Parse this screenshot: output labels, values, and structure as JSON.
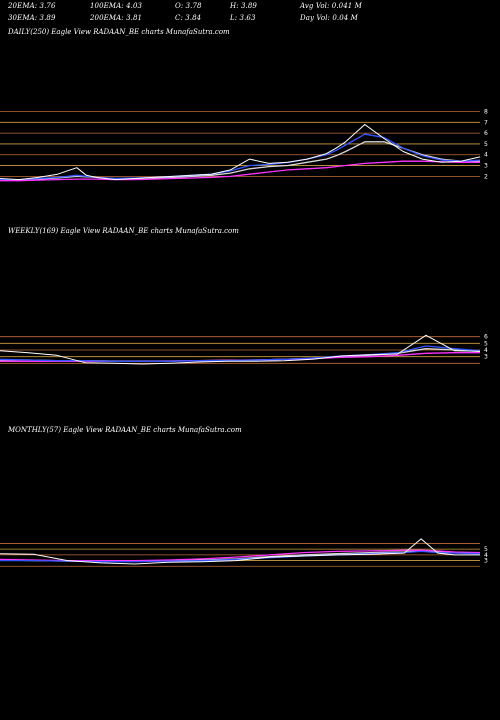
{
  "header": {
    "row1": [
      {
        "label": "20EMA: 3.76"
      },
      {
        "label": "100EMA: 4.03"
      },
      {
        "label": "O: 3.78"
      },
      {
        "label": "H: 3.89"
      },
      {
        "label": "Avg Vol: 0.041 M"
      }
    ],
    "row2": [
      {
        "label": "30EMA: 3.89"
      },
      {
        "label": "200EMA: 3.81"
      },
      {
        "label": "C: 3.84"
      },
      {
        "label": "L: 3.63"
      },
      {
        "label": "Day Vol: 0.04  M"
      }
    ]
  },
  "colors": {
    "background": "#000000",
    "price": "#ffffff",
    "ema_magenta": "#ff33ff",
    "ema_blue": "#3355ff",
    "ema_light": "#d8d8d8",
    "level_lines": "#c06a3a",
    "level_lines_alt": "#d0a040"
  },
  "chart_data": [
    {
      "type": "line",
      "title": "DAILY(250) Eagle  View  RADAAN_BE charts MunafaSutra.com",
      "yticks": [
        "8",
        "7",
        "6",
        "5",
        "4",
        "3",
        "2"
      ],
      "levels": [
        8,
        7,
        6,
        5,
        4,
        3,
        2
      ],
      "ylim": [
        1.2,
        8.6
      ],
      "x": [
        0,
        10,
        20,
        30,
        40,
        45,
        50,
        60,
        70,
        80,
        90,
        100,
        110,
        120,
        130,
        140,
        150,
        160,
        170,
        175,
        180,
        190,
        200,
        210,
        220,
        230,
        240,
        250
      ],
      "series": [
        {
          "color": "#ffffff",
          "values": [
            1.8,
            1.7,
            1.9,
            2.2,
            2.8,
            2.1,
            1.9,
            1.7,
            1.8,
            1.9,
            2.0,
            2.1,
            2.2,
            2.6,
            3.6,
            3.2,
            3.3,
            3.6,
            4.1,
            4.6,
            5.2,
            6.8,
            5.5,
            4.3,
            3.6,
            3.3,
            3.4,
            3.8
          ]
        },
        {
          "color": "#ff33ff",
          "values": [
            1.6,
            1.6,
            1.65,
            1.7,
            1.75,
            1.75,
            1.75,
            1.7,
            1.7,
            1.75,
            1.8,
            1.85,
            1.9,
            2.0,
            2.2,
            2.4,
            2.6,
            2.7,
            2.8,
            2.9,
            3.0,
            3.2,
            3.3,
            3.4,
            3.4,
            3.35,
            3.3,
            3.3
          ]
        },
        {
          "color": "#3355ff",
          "values": [
            1.7,
            1.7,
            1.8,
            1.9,
            2.1,
            2.0,
            1.9,
            1.8,
            1.85,
            1.9,
            2.0,
            2.1,
            2.2,
            2.5,
            3.0,
            3.1,
            3.3,
            3.6,
            4.0,
            4.4,
            4.9,
            5.9,
            5.6,
            4.6,
            3.9,
            3.5,
            3.4,
            3.5
          ]
        },
        {
          "color": "#d8d8d8",
          "values": [
            1.7,
            1.7,
            1.75,
            1.85,
            2.0,
            1.95,
            1.9,
            1.8,
            1.8,
            1.85,
            1.9,
            2.0,
            2.1,
            2.3,
            2.7,
            2.9,
            3.0,
            3.3,
            3.6,
            3.9,
            4.3,
            5.2,
            5.2,
            4.6,
            4.0,
            3.6,
            3.4,
            3.4
          ]
        }
      ]
    },
    {
      "type": "line",
      "title": "WEEKLY(169) Eagle  View  RADAAN_BE charts MunafaSutra.com",
      "yticks": [
        "6",
        "5",
        "4",
        "3"
      ],
      "levels": [
        6,
        5,
        4,
        3,
        2
      ],
      "ylim": [
        1.0,
        7.0
      ],
      "x": [
        0,
        10,
        20,
        30,
        40,
        50,
        60,
        70,
        80,
        90,
        100,
        110,
        120,
        130,
        140,
        150,
        160,
        169
      ],
      "series": [
        {
          "color": "#ffffff",
          "values": [
            3.9,
            3.6,
            3.2,
            2.1,
            2.0,
            1.9,
            2.0,
            2.2,
            2.3,
            2.3,
            2.4,
            2.6,
            3.1,
            3.3,
            3.4,
            6.2,
            3.9,
            3.8
          ]
        },
        {
          "color": "#3355ff",
          "values": [
            2.6,
            2.5,
            2.4,
            2.4,
            2.3,
            2.3,
            2.3,
            2.4,
            2.4,
            2.5,
            2.6,
            2.8,
            3.1,
            3.3,
            3.6,
            4.6,
            4.2,
            3.9
          ]
        },
        {
          "color": "#ff33ff",
          "values": [
            2.3,
            2.3,
            2.3,
            2.3,
            2.3,
            2.3,
            2.35,
            2.4,
            2.45,
            2.5,
            2.6,
            2.7,
            2.9,
            3.0,
            3.2,
            3.5,
            3.6,
            3.6
          ]
        },
        {
          "color": "#d8d8d8",
          "values": [
            2.5,
            2.5,
            2.4,
            2.4,
            2.35,
            2.35,
            2.35,
            2.4,
            2.45,
            2.5,
            2.6,
            2.75,
            3.0,
            3.2,
            3.5,
            4.2,
            4.0,
            3.8
          ]
        }
      ]
    },
    {
      "type": "line",
      "title": "MONTHLY(57) Eagle  View  RADAAN_BE charts MunafaSutra.com",
      "yticks": [
        "5",
        "4",
        "3"
      ],
      "levels": [
        6,
        5,
        4,
        3,
        2
      ],
      "ylim": [
        1.0,
        8.0
      ],
      "x": [
        0,
        4,
        8,
        12,
        16,
        20,
        24,
        28,
        32,
        36,
        40,
        44,
        48,
        50,
        52,
        54,
        57
      ],
      "series": [
        {
          "color": "#ffffff",
          "values": [
            4.2,
            4.1,
            3.0,
            2.6,
            2.4,
            2.7,
            2.8,
            3.0,
            3.6,
            3.8,
            4.0,
            4.1,
            4.3,
            6.8,
            4.3,
            4.0,
            4.0
          ]
        },
        {
          "color": "#3355ff",
          "values": [
            3.0,
            3.0,
            2.9,
            2.8,
            2.8,
            2.9,
            3.0,
            3.2,
            3.5,
            3.8,
            4.0,
            4.2,
            4.4,
            4.6,
            4.4,
            4.3,
            4.2
          ]
        },
        {
          "color": "#ff33ff",
          "values": [
            3.2,
            3.1,
            3.0,
            3.0,
            3.0,
            3.1,
            3.3,
            3.6,
            4.0,
            4.4,
            4.6,
            4.7,
            4.8,
            4.8,
            4.7,
            4.5,
            4.4
          ]
        },
        {
          "color": "#d8d8d8",
          "values": [
            3.1,
            3.0,
            2.9,
            2.9,
            2.9,
            3.0,
            3.1,
            3.3,
            3.7,
            4.0,
            4.2,
            4.4,
            4.5,
            4.7,
            4.5,
            4.4,
            4.3
          ]
        }
      ]
    }
  ]
}
